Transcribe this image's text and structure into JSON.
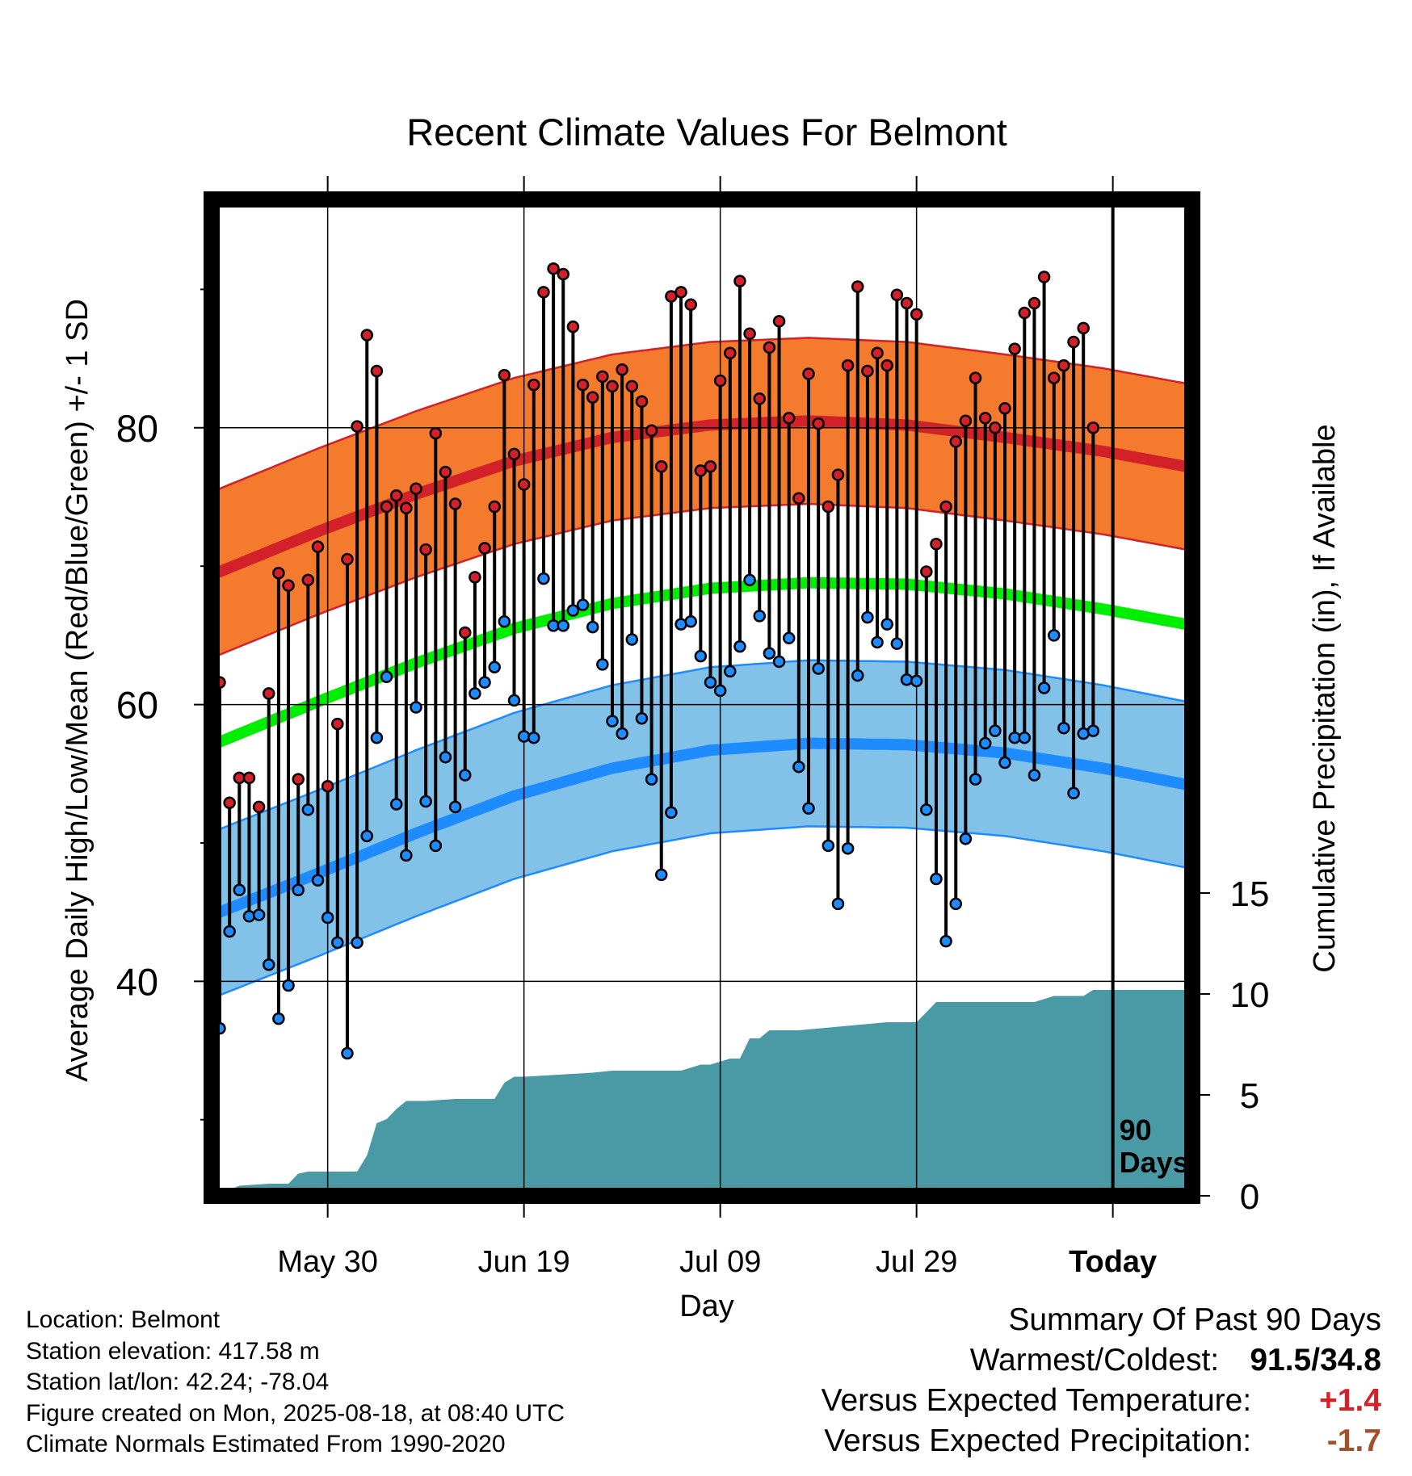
{
  "chart_data": {
    "type": "line",
    "title": "Recent Climate Values For Belmont",
    "xlabel": "Day",
    "ylabel": "Average Daily High/Low/Mean (Red/Blue/Green) +/- 1 SD",
    "y2label": "Cumulative Precipitation (in), If Available",
    "ylim": [
      24.5,
      96.5
    ],
    "y_ticks": [
      40,
      60,
      80
    ],
    "y2lim": [
      0,
      34
    ],
    "y2_ticks": [
      0,
      5,
      10,
      15
    ],
    "x_tick_labels": [
      "May 30",
      "Jun 19",
      "Jul 09",
      "Jul 29",
      "Today"
    ],
    "grid": true,
    "window_label": "90 Days",
    "start_date": "2025-05-19",
    "end_date": "2025-08-18",
    "daily": {
      "dates": [
        "2025-05-19",
        "2025-05-20",
        "2025-05-21",
        "2025-05-22",
        "2025-05-23",
        "2025-05-24",
        "2025-05-25",
        "2025-05-26",
        "2025-05-27",
        "2025-05-28",
        "2025-05-29",
        "2025-05-30",
        "2025-05-31",
        "2025-06-01",
        "2025-06-02",
        "2025-06-03",
        "2025-06-04",
        "2025-06-05",
        "2025-06-06",
        "2025-06-07",
        "2025-06-08",
        "2025-06-09",
        "2025-06-10",
        "2025-06-11",
        "2025-06-12",
        "2025-06-13",
        "2025-06-14",
        "2025-06-15",
        "2025-06-16",
        "2025-06-17",
        "2025-06-18",
        "2025-06-19",
        "2025-06-20",
        "2025-06-21",
        "2025-06-22",
        "2025-06-23",
        "2025-06-24",
        "2025-06-25",
        "2025-06-26",
        "2025-06-27",
        "2025-06-28",
        "2025-06-29",
        "2025-06-30",
        "2025-07-01",
        "2025-07-02",
        "2025-07-03",
        "2025-07-04",
        "2025-07-05",
        "2025-07-06",
        "2025-07-07",
        "2025-07-08",
        "2025-07-09",
        "2025-07-10",
        "2025-07-11",
        "2025-07-12",
        "2025-07-13",
        "2025-07-14",
        "2025-07-15",
        "2025-07-16",
        "2025-07-17",
        "2025-07-18",
        "2025-07-19",
        "2025-07-20",
        "2025-07-21",
        "2025-07-22",
        "2025-07-23",
        "2025-07-24",
        "2025-07-25",
        "2025-07-26",
        "2025-07-27",
        "2025-07-28",
        "2025-07-29",
        "2025-07-30",
        "2025-07-31",
        "2025-08-01",
        "2025-08-02",
        "2025-08-03",
        "2025-08-04",
        "2025-08-05",
        "2025-08-06",
        "2025-08-07",
        "2025-08-08",
        "2025-08-09",
        "2025-08-10",
        "2025-08-11",
        "2025-08-12",
        "2025-08-13",
        "2025-08-14",
        "2025-08-15",
        "2025-08-16"
      ],
      "high": [
        61.6,
        52.9,
        54.7,
        54.7,
        52.6,
        60.8,
        69.5,
        68.6,
        54.6,
        69.0,
        71.4,
        54.1,
        58.6,
        70.5,
        80.1,
        86.7,
        84.1,
        74.3,
        75.1,
        74.2,
        75.6,
        71.2,
        79.6,
        76.8,
        74.5,
        65.2,
        69.2,
        71.3,
        74.3,
        83.8,
        78.1,
        75.9,
        83.1,
        89.8,
        91.5,
        91.1,
        87.3,
        83.1,
        82.2,
        83.7,
        83.0,
        84.2,
        83.0,
        81.9,
        79.8,
        77.2,
        89.5,
        89.8,
        88.9,
        76.9,
        77.2,
        83.4,
        85.4,
        90.6,
        86.8,
        82.1,
        85.8,
        87.7,
        80.7,
        74.9,
        83.9,
        80.3,
        74.3,
        76.6,
        84.5,
        90.2,
        84.1,
        85.4,
        84.5,
        89.6,
        89.0,
        88.2,
        69.6,
        71.6,
        74.3,
        79.0,
        80.5,
        83.6,
        80.7,
        80.0,
        81.4,
        85.7,
        88.3,
        89.0,
        90.9,
        83.6,
        84.5,
        86.2,
        87.2,
        80.0
      ],
      "low": [
        36.6,
        43.6,
        46.6,
        44.7,
        44.8,
        41.2,
        37.3,
        39.7,
        46.6,
        52.4,
        47.3,
        44.6,
        42.8,
        34.8,
        42.8,
        50.5,
        57.6,
        62.0,
        52.8,
        49.1,
        59.8,
        53.0,
        49.8,
        56.2,
        52.6,
        54.9,
        60.8,
        61.6,
        62.7,
        66.0,
        60.3,
        57.7,
        57.6,
        69.1,
        65.7,
        65.7,
        66.8,
        67.2,
        65.6,
        62.9,
        58.8,
        57.9,
        64.7,
        59.0,
        54.6,
        47.7,
        52.2,
        65.8,
        66.0,
        63.5,
        61.6,
        61.0,
        62.4,
        64.2,
        69.0,
        66.4,
        63.7,
        63.1,
        64.8,
        55.5,
        52.5,
        62.6,
        49.8,
        45.6,
        49.6,
        62.1,
        66.3,
        64.5,
        65.8,
        64.4,
        61.8,
        61.7,
        52.4,
        47.4,
        42.9,
        45.6,
        50.3,
        54.6,
        57.2,
        58.1,
        55.8,
        57.6,
        57.6,
        54.9,
        61.2,
        65.0,
        58.3,
        53.6,
        57.9,
        58.1
      ]
    },
    "normals": {
      "dates": [
        "2025-05-19",
        "2025-05-29",
        "2025-06-08",
        "2025-06-18",
        "2025-06-28",
        "2025-07-08",
        "2025-07-18",
        "2025-07-28",
        "2025-08-07",
        "2025-08-17",
        "2025-08-27"
      ],
      "high_mean": [
        69.6,
        72.5,
        75.2,
        77.6,
        79.3,
        80.2,
        80.5,
        80.2,
        79.3,
        78.3,
        77.0
      ],
      "high_sd": 6.0,
      "low_mean": [
        45.0,
        47.8,
        50.7,
        53.4,
        55.4,
        56.7,
        57.2,
        57.1,
        56.5,
        55.4,
        54.0
      ],
      "low_sd": 6.0,
      "avg_mean": [
        57.3,
        60.2,
        63.0,
        65.5,
        67.3,
        68.4,
        68.8,
        68.7,
        68.0,
        66.9,
        65.6
      ]
    },
    "precipitation": {
      "dates": [
        "2025-05-19",
        "2025-05-20",
        "2025-05-21",
        "2025-05-24",
        "2025-05-26",
        "2025-05-27",
        "2025-05-28",
        "2025-06-02",
        "2025-06-03",
        "2025-06-04",
        "2025-06-05",
        "2025-06-06",
        "2025-06-07",
        "2025-06-08",
        "2025-06-09",
        "2025-06-12",
        "2025-06-16",
        "2025-06-17",
        "2025-06-18",
        "2025-06-19",
        "2025-06-26",
        "2025-06-28",
        "2025-07-05",
        "2025-07-07",
        "2025-07-08",
        "2025-07-10",
        "2025-07-11",
        "2025-07-12",
        "2025-07-13",
        "2025-07-14",
        "2025-07-17",
        "2025-07-26",
        "2025-07-27",
        "2025-07-29",
        "2025-07-31",
        "2025-08-01",
        "2025-08-10",
        "2025-08-12",
        "2025-08-15",
        "2025-08-16",
        "2025-08-17",
        "2025-08-18"
      ],
      "cumulative": [
        0.0,
        0.3,
        0.5,
        0.6,
        0.6,
        1.1,
        1.2,
        1.2,
        2.0,
        3.6,
        3.8,
        4.3,
        4.7,
        4.7,
        4.7,
        4.8,
        4.8,
        5.6,
        5.9,
        5.9,
        6.1,
        6.2,
        6.2,
        6.5,
        6.5,
        6.8,
        6.8,
        7.8,
        7.8,
        8.2,
        8.2,
        8.6,
        8.6,
        8.6,
        9.6,
        9.6,
        9.6,
        9.9,
        9.9,
        10.2,
        10.2,
        10.2
      ]
    },
    "colors": {
      "high_band": "#f47a2e",
      "high_line": "#d22128",
      "low_band": "#82c2e8",
      "low_line": "#1e8cff",
      "mean_line": "#00ee00",
      "precip_fill": "#4a9aa5"
    }
  },
  "info": {
    "location": "Location: Belmont",
    "elevation": "Station elevation: 417.58 m",
    "latlon": "Station lat/lon: 42.24; -78.04",
    "created": "Figure created on Mon, 2025-08-18, at 08:40 UTC",
    "normals_period": "Climate Normals Estimated From 1990-2020"
  },
  "summary": {
    "title": "Summary Of Past 90 Days",
    "warm_cold_label": "Warmest/Coldest:",
    "warm_cold_value": "91.5/34.8",
    "temp_label": "Versus Expected Temperature:",
    "temp_value": "+1.4",
    "temp_color": "#d22128",
    "precip_label": "Versus Expected Precipitation:",
    "precip_value": "-1.7",
    "precip_color": "#a0522d"
  }
}
